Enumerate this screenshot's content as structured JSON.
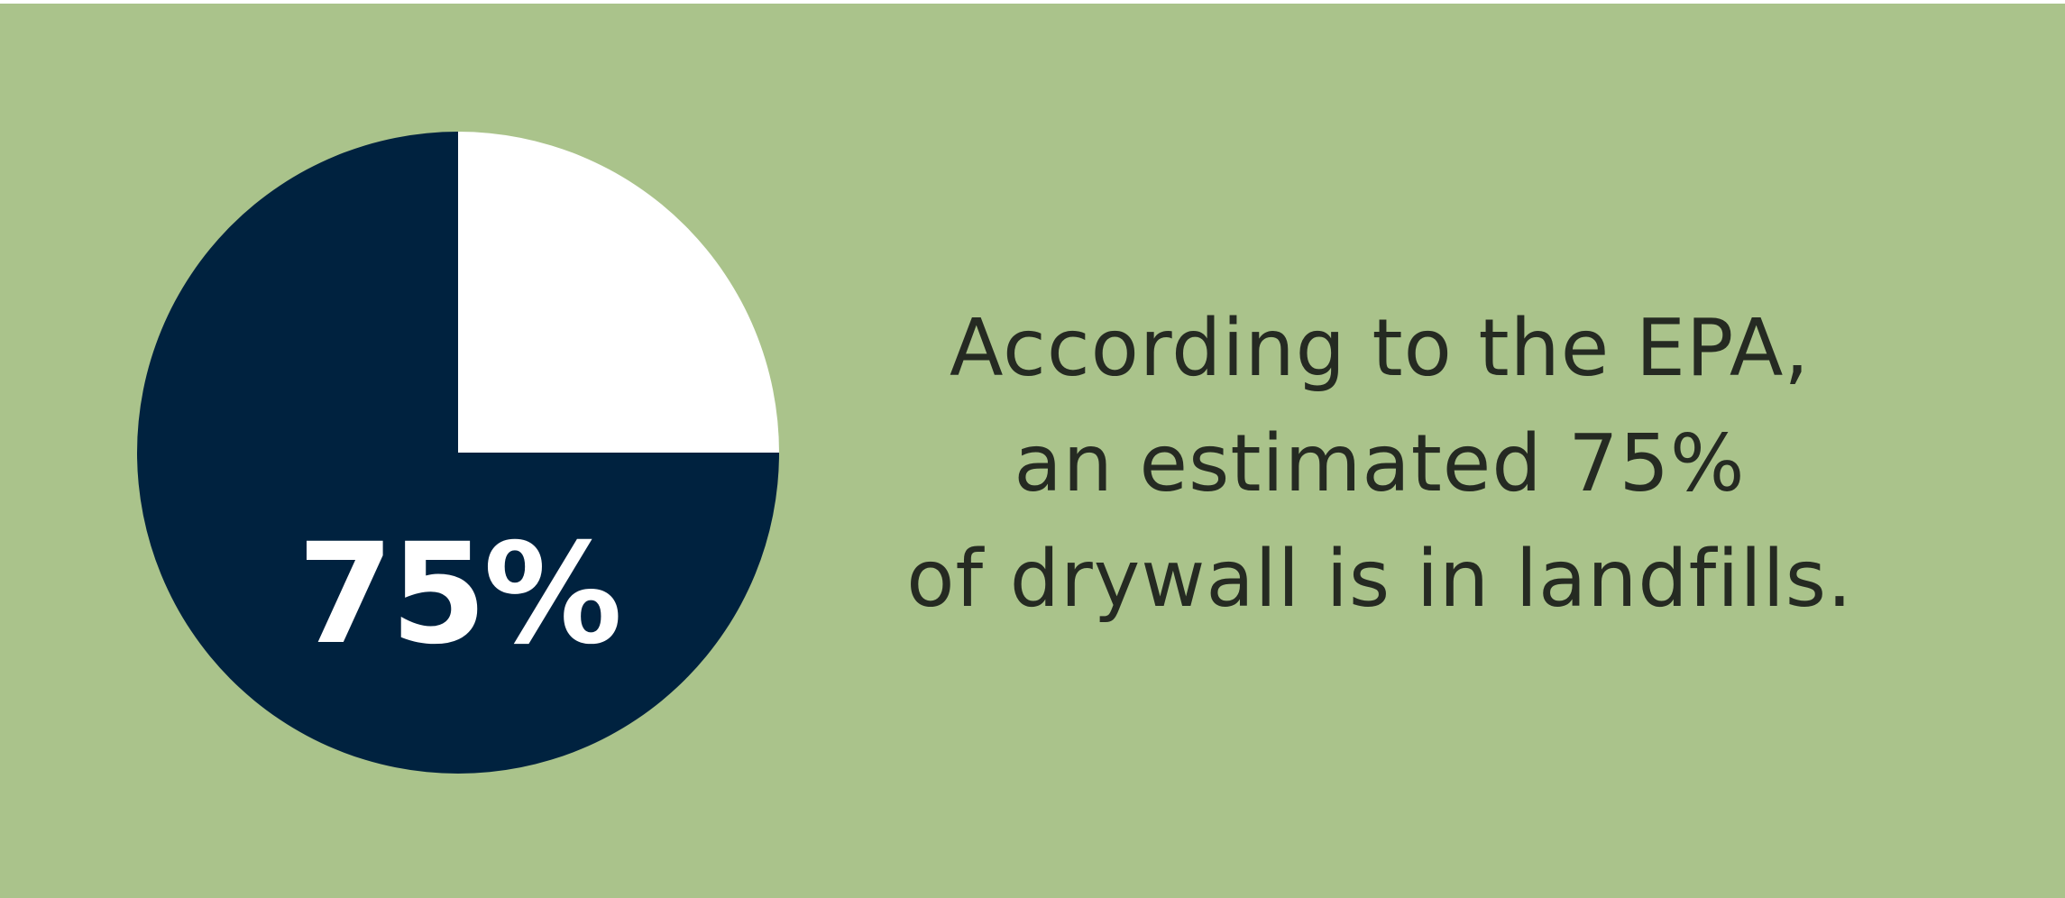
{
  "colors": {
    "background": "#aac38b",
    "slice_highlight": "#00223f",
    "slice_rest": "#ffffff",
    "caption_text": "#252a22",
    "center_label_text": "#ffffff"
  },
  "chart_data": {
    "type": "pie",
    "categories": [
      "",
      ""
    ],
    "values": [
      75,
      25
    ],
    "value_label": "75%",
    "title": "",
    "legend": "none"
  },
  "caption": {
    "line1": "According to the EPA,",
    "line2": "an estimated 75%",
    "line3": "of drywall is in landfills."
  }
}
